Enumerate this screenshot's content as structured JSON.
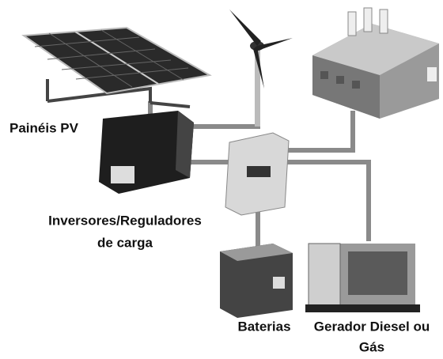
{
  "labels": {
    "panels": "Painéis PV",
    "inverters": [
      "Inversores/Reguladores",
      "de carga"
    ],
    "batteries": "Baterias",
    "generator": [
      "Gerador Diesel ou",
      "Gás"
    ]
  }
}
